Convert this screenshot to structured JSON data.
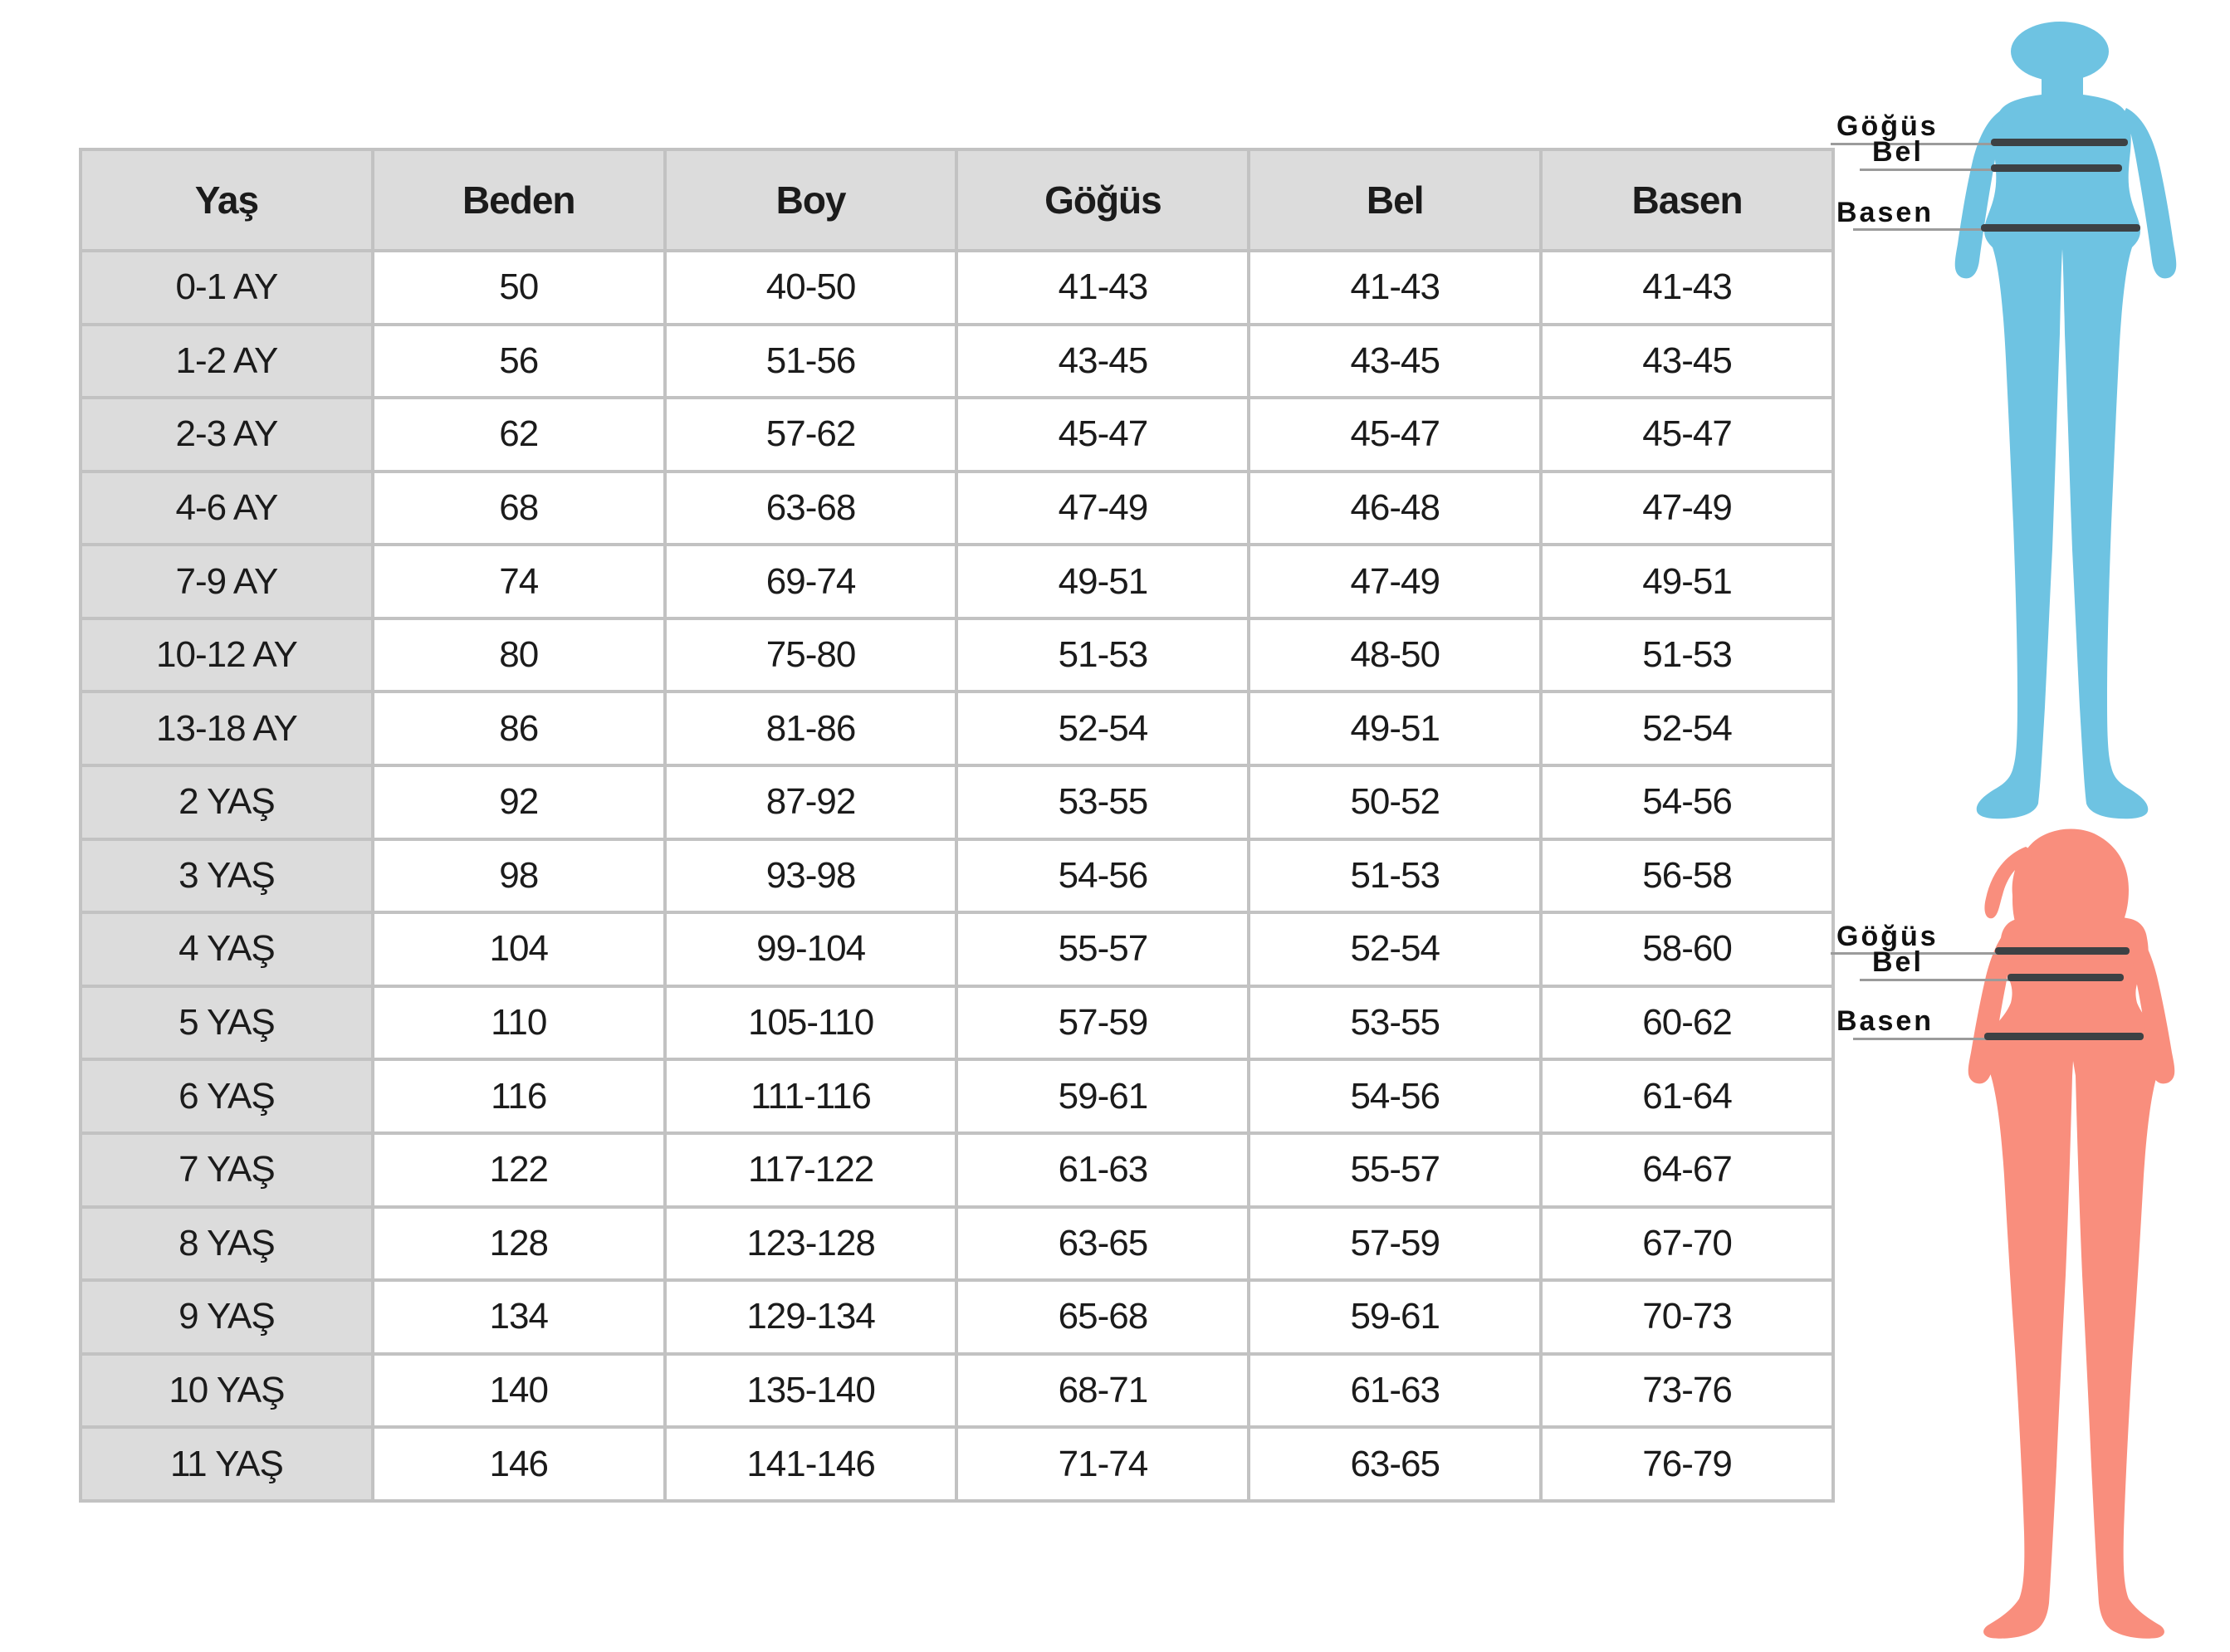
{
  "table": {
    "headers": [
      "Yaş",
      "Beden",
      "Boy",
      "Göğüs",
      "Bel",
      "Basen"
    ],
    "rows": [
      [
        "0-1 AY",
        "50",
        "40-50",
        "41-43",
        "41-43",
        "41-43"
      ],
      [
        "1-2 AY",
        "56",
        "51-56",
        "43-45",
        "43-45",
        "43-45"
      ],
      [
        "2-3 AY",
        "62",
        "57-62",
        "45-47",
        "45-47",
        "45-47"
      ],
      [
        "4-6 AY",
        "68",
        "63-68",
        "47-49",
        "46-48",
        "47-49"
      ],
      [
        "7-9 AY",
        "74",
        "69-74",
        "49-51",
        "47-49",
        "49-51"
      ],
      [
        "10-12 AY",
        "80",
        "75-80",
        "51-53",
        "48-50",
        "51-53"
      ],
      [
        "13-18 AY",
        "86",
        "81-86",
        "52-54",
        "49-51",
        "52-54"
      ],
      [
        "2 YAŞ",
        "92",
        "87-92",
        "53-55",
        "50-52",
        "54-56"
      ],
      [
        "3 YAŞ",
        "98",
        "93-98",
        "54-56",
        "51-53",
        "56-58"
      ],
      [
        "4 YAŞ",
        "104",
        "99-104",
        "55-57",
        "52-54",
        "58-60"
      ],
      [
        "5 YAŞ",
        "110",
        "105-110",
        "57-59",
        "53-55",
        "60-62"
      ],
      [
        "6 YAŞ",
        "116",
        "111-116",
        "59-61",
        "54-56",
        "61-64"
      ],
      [
        "7 YAŞ",
        "122",
        "117-122",
        "61-63",
        "55-57",
        "64-67"
      ],
      [
        "8 YAŞ",
        "128",
        "123-128",
        "63-65",
        "57-59",
        "67-70"
      ],
      [
        "9 YAŞ",
        "134",
        "129-134",
        "65-68",
        "59-61",
        "70-73"
      ],
      [
        "10 YAŞ",
        "140",
        "135-140",
        "68-71",
        "61-63",
        "73-76"
      ],
      [
        "11 YAŞ",
        "146",
        "141-146",
        "71-74",
        "63-65",
        "76-79"
      ]
    ]
  },
  "figures": {
    "boy": {
      "color": "#6EC3E2",
      "labels": {
        "chest": "Göğüs",
        "waist": "Bel",
        "hip": "Basen"
      }
    },
    "girl": {
      "color": "#F98E7D",
      "labels": {
        "chest": "Göğüs",
        "waist": "Bel",
        "hip": "Basen"
      }
    }
  },
  "colors": {
    "header_bg": "#dcdcdc",
    "grid": "#c2c2c2",
    "measure_line_dark": "#3d4144",
    "measure_line_thin": "#9b9b9b",
    "text": "#1b1b1b"
  }
}
